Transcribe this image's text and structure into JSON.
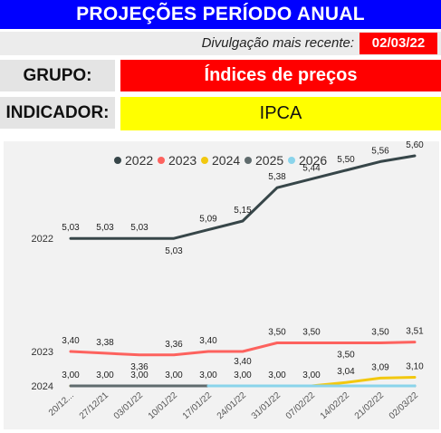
{
  "header": {
    "title": "PROJEÇÕES PERÍODO ANUAL"
  },
  "release": {
    "label": "Divulgação mais recente:",
    "date": "02/03/22"
  },
  "group": {
    "label": "GRUPO:",
    "value": "Índices de preços"
  },
  "indicator": {
    "label": "INDICADOR:",
    "value": "IPCA"
  },
  "colors": {
    "banner": "#0000ff",
    "highlight": "#ff0000",
    "indicator_bg": "#ffff00"
  },
  "chart_data": {
    "type": "line",
    "categories": [
      "20/12...",
      "27/12/21",
      "03/01/22",
      "10/01/22",
      "17/01/22",
      "24/01/22",
      "31/01/22",
      "07/02/22",
      "14/02/22",
      "21/02/22",
      "02/03/22"
    ],
    "legend_position": "top",
    "series": [
      {
        "name": "2022",
        "color": "#374649",
        "row_label": "2022",
        "values": [
          5.03,
          5.03,
          5.03,
          5.03,
          5.09,
          5.15,
          5.38,
          5.44,
          5.5,
          5.56,
          5.6
        ],
        "labels": [
          "5,03",
          "5,03",
          "5,03",
          "5,03",
          "5,09",
          "5,15",
          "5,38",
          "5,44",
          "5,50",
          "5,56",
          "5,60"
        ]
      },
      {
        "name": "2023",
        "color": "#fd625e",
        "row_label": "2023",
        "values": [
          3.4,
          3.38,
          3.36,
          3.36,
          3.4,
          3.4,
          3.5,
          3.5,
          3.5,
          3.5,
          3.51
        ],
        "labels": [
          "3,40",
          "3,38",
          "3,36",
          "3,36",
          "3,40",
          "3,40",
          "3,50",
          "3,50",
          "3,50",
          "3,50",
          "3,51"
        ]
      },
      {
        "name": "2024",
        "color": "#f2c80f",
        "row_label": "2024",
        "values": [
          3.0,
          3.0,
          3.0,
          3.0,
          3.0,
          3.0,
          3.0,
          3.0,
          3.04,
          3.09,
          3.1
        ],
        "labels": [
          "3,00",
          "3,00",
          "3,00",
          "3,00",
          "3,00",
          "3,00",
          "3,00",
          "3,00",
          "3,04",
          "3,09",
          "3,10"
        ]
      },
      {
        "name": "2025",
        "color": "#5f6b6d",
        "values": [
          3.0,
          3.0,
          3.0,
          3.0,
          3.0,
          3.0,
          3.0,
          3.0,
          3.0,
          3.0,
          3.0
        ]
      },
      {
        "name": "2026",
        "color": "#8ad4eb",
        "values": [
          null,
          null,
          null,
          null,
          3.0,
          3.0,
          3.0,
          3.0,
          3.0,
          3.0,
          3.0
        ]
      }
    ]
  }
}
